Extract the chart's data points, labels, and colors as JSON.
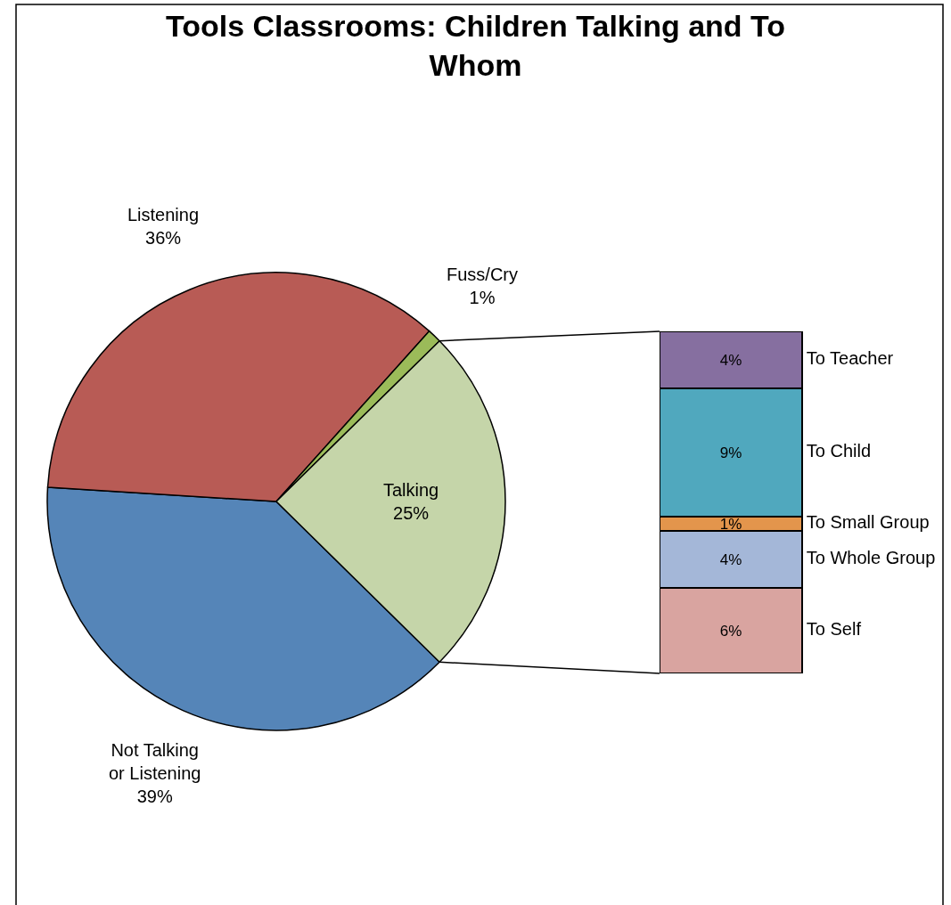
{
  "chart_data": [
    {
      "type": "pie",
      "title": "Tools Classrooms: Children Talking and To Whom",
      "categories": [
        "Not Talking or Listening",
        "Listening",
        "Fuss/Cry",
        "Talking"
      ],
      "values": [
        39,
        36,
        1,
        25
      ],
      "value_labels": [
        "39%",
        "36%",
        "1%",
        "25%"
      ],
      "colors": [
        "#5585b8",
        "#b85b55",
        "#9bbb59",
        "#c5d5a9"
      ]
    },
    {
      "type": "bar",
      "stacked": true,
      "categories": [
        null
      ],
      "series": [
        {
          "name": "To Self",
          "color": "#d9a4a0",
          "values": [
            6
          ],
          "value_labels": [
            "6%"
          ]
        },
        {
          "name": "To Whole Group",
          "color": "#a4b7d8",
          "values": [
            4
          ],
          "value_labels": [
            "4%"
          ]
        },
        {
          "name": "To Small Group",
          "color": "#e3954c",
          "values": [
            1
          ],
          "value_labels": [
            "1%"
          ]
        },
        {
          "name": "To Child",
          "color": "#50a8be",
          "values": [
            9
          ],
          "value_labels": [
            "9%"
          ]
        },
        {
          "name": "To Teacher",
          "color": "#866fa0",
          "values": [
            4
          ],
          "value_labels": [
            "4%"
          ]
        }
      ]
    }
  ]
}
